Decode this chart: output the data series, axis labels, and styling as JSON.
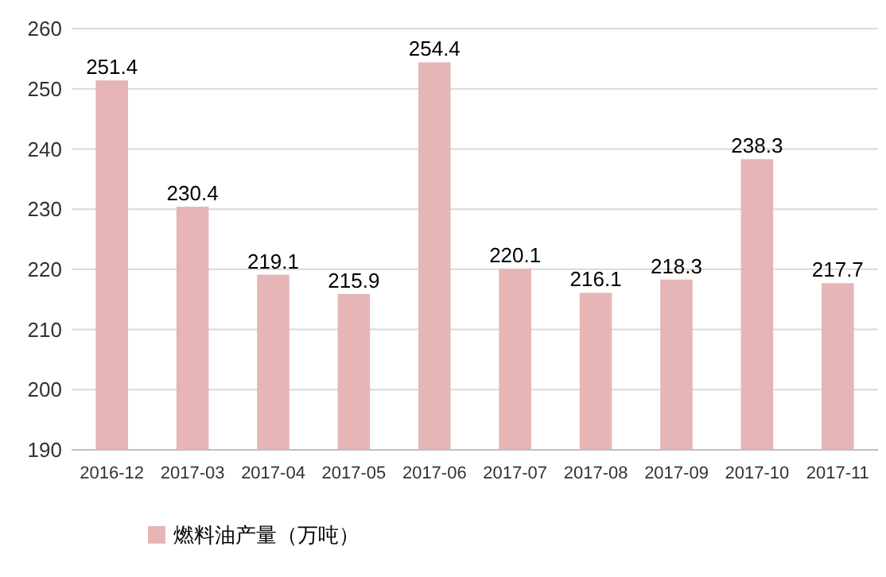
{
  "chart_data": {
    "type": "bar",
    "categories": [
      "2016-12",
      "2017-03",
      "2017-04",
      "2017-05",
      "2017-06",
      "2017-07",
      "2017-08",
      "2017-09",
      "2017-10",
      "2017-11"
    ],
    "series": [
      {
        "name": "燃料油产量（万吨）",
        "color": "#e6b5b5",
        "values": [
          251.4,
          230.4,
          219.1,
          215.9,
          254.4,
          220.1,
          216.1,
          218.3,
          238.3,
          217.7
        ]
      }
    ],
    "ylim": [
      190,
      260
    ],
    "yticks": [
      190,
      200,
      210,
      220,
      230,
      240,
      250,
      260
    ],
    "grid": "y",
    "legend": "bottom left",
    "data_labels": true
  }
}
